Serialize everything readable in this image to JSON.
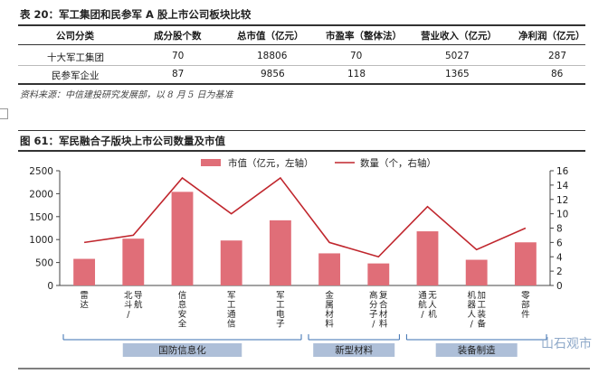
{
  "table": {
    "title": "表 20：军工集团和民参军 A 股上市公司板块比较",
    "headers": [
      "公司分类",
      "成分股个数",
      "总市值（亿元）",
      "市盈率（整体法）",
      "营业收入（亿元）",
      "净利润（亿元）"
    ],
    "rows": [
      [
        "十大军工集团",
        "70",
        "18806",
        "70",
        "5027",
        "287"
      ],
      [
        "民参军企业",
        "87",
        "9856",
        "118",
        "1365",
        "86"
      ]
    ],
    "source": "资料来源：中信建投研究发展部，以 8 月 5 日为基准"
  },
  "figure": {
    "title": "图 61：军民融合子版块上市公司数量及市值"
  },
  "chart_data": {
    "type": "bar",
    "categories": [
      "雷达",
      "北斗/导航",
      "信息安全",
      "军工通信",
      "军工电子",
      "金属材料",
      "高分子/复合材料",
      "通航/无人机",
      "机器人/加工装备",
      "零部件"
    ],
    "series": [
      {
        "name": "市值（亿元，左轴）",
        "type": "bar",
        "axis": "left",
        "color": "#e06e78",
        "values": [
          580,
          1020,
          2040,
          980,
          1420,
          700,
          480,
          1180,
          560,
          940
        ]
      },
      {
        "name": "数量（个，右轴）",
        "type": "line",
        "axis": "right",
        "color": "#c0262d",
        "values": [
          6,
          7,
          15,
          10,
          15,
          6,
          4,
          11,
          5,
          8
        ]
      }
    ],
    "yleft": {
      "min": 0,
      "max": 2500,
      "ticks": [
        0,
        500,
        1000,
        1500,
        2000,
        2500
      ]
    },
    "yright": {
      "min": 0,
      "max": 16,
      "ticks": [
        0,
        2,
        4,
        6,
        8,
        10,
        12,
        14,
        16
      ]
    },
    "groups": [
      {
        "label": "国防信息化",
        "from": 0,
        "to": 4
      },
      {
        "label": "新型材料",
        "from": 5,
        "to": 6
      },
      {
        "label": "装备制造",
        "from": 7,
        "to": 9
      }
    ],
    "legend_position": "top"
  },
  "watermark": "山石观市"
}
